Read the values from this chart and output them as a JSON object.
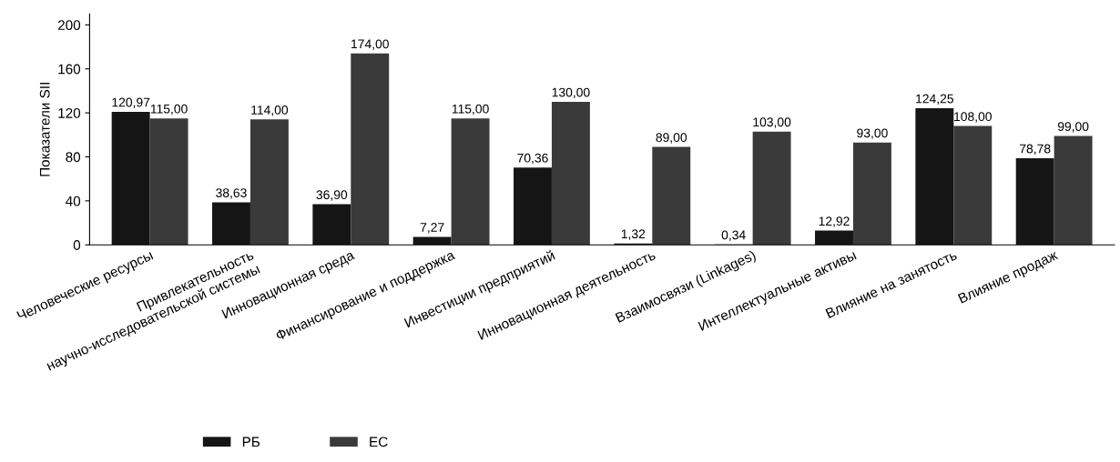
{
  "chart_data": {
    "type": "bar",
    "ylabel": "Показатели SII",
    "categories": [
      "Человеческие ресурсы",
      "Привлекательность\nнаучно-исследовательской системы",
      "Инновационная среда",
      "Финансирование и поддержка",
      "Инвестиции предприятий",
      "Инновационная деятельность",
      "Взаимосвязи (Linkages)",
      "Интеллектуальные активы",
      "Влияние на занятость",
      "Влияние продаж"
    ],
    "series": [
      {
        "name": "РБ",
        "color": "#151515",
        "values": [
          120.97,
          38.63,
          36.9,
          7.27,
          70.36,
          1.32,
          0.34,
          12.92,
          124.25,
          78.78
        ],
        "value_labels": [
          "120,97",
          "38,63",
          "36,90",
          "7,27",
          "70,36",
          "1,32",
          "0,34",
          "12,92",
          "124,25",
          "78,78"
        ]
      },
      {
        "name": "ЕС",
        "color": "#3a3a3a",
        "values": [
          115.0,
          114.0,
          174.0,
          115.0,
          130.0,
          89.0,
          103.0,
          93.0,
          108.0,
          99.0
        ],
        "value_labels": [
          "115,00",
          "114,00",
          "174,00",
          "115,00",
          "130,00",
          "89,00",
          "103,00",
          "93,00",
          "108,00",
          "99,00"
        ]
      }
    ],
    "ylim": [
      0,
      210
    ],
    "yticks": [
      0,
      40,
      80,
      120,
      160,
      200
    ],
    "grid": false,
    "legend": "bottom"
  }
}
